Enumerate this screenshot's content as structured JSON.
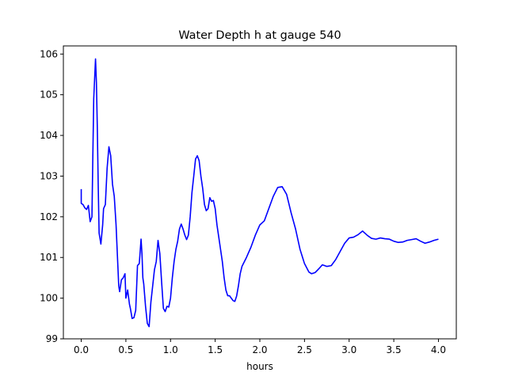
{
  "chart_data": {
    "type": "line",
    "title": "Water Depth h at gauge 540",
    "xlabel": "hours",
    "ylabel": "",
    "xlim": [
      -0.2,
      4.2
    ],
    "ylim": [
      99.0,
      106.2
    ],
    "xticks": [
      0.0,
      0.5,
      1.0,
      1.5,
      2.0,
      2.5,
      3.0,
      3.5,
      4.0
    ],
    "xtick_labels": [
      "0.0",
      "0.5",
      "1.0",
      "1.5",
      "2.0",
      "2.5",
      "3.0",
      "3.5",
      "4.0"
    ],
    "yticks": [
      99,
      100,
      101,
      102,
      103,
      104,
      105,
      106
    ],
    "ytick_labels": [
      "99",
      "100",
      "101",
      "102",
      "103",
      "104",
      "105",
      "106"
    ],
    "grid": false,
    "series": [
      {
        "color": "#0000ff",
        "x": [
          0.0,
          0.0,
          0.02,
          0.04,
          0.06,
          0.08,
          0.1,
          0.12,
          0.13,
          0.14,
          0.15,
          0.16,
          0.17,
          0.18,
          0.19,
          0.2,
          0.22,
          0.24,
          0.25,
          0.27,
          0.29,
          0.31,
          0.33,
          0.35,
          0.37,
          0.39,
          0.41,
          0.42,
          0.43,
          0.45,
          0.47,
          0.49,
          0.5,
          0.52,
          0.54,
          0.55,
          0.57,
          0.59,
          0.61,
          0.63,
          0.65,
          0.67,
          0.68,
          0.69,
          0.7,
          0.72,
          0.74,
          0.76,
          0.78,
          0.8,
          0.82,
          0.84,
          0.86,
          0.88,
          0.9,
          0.92,
          0.94,
          0.96,
          0.98,
          1.0,
          1.02,
          1.04,
          1.06,
          1.08,
          1.1,
          1.12,
          1.14,
          1.16,
          1.18,
          1.2,
          1.22,
          1.24,
          1.26,
          1.28,
          1.3,
          1.32,
          1.34,
          1.36,
          1.38,
          1.4,
          1.42,
          1.44,
          1.46,
          1.48,
          1.5,
          1.52,
          1.54,
          1.56,
          1.58,
          1.6,
          1.62,
          1.64,
          1.66,
          1.68,
          1.7,
          1.72,
          1.74,
          1.76,
          1.78,
          1.8,
          1.85,
          1.9,
          1.95,
          2.0,
          2.05,
          2.1,
          2.15,
          2.2,
          2.25,
          2.3,
          2.35,
          2.4,
          2.45,
          2.5,
          2.55,
          2.58,
          2.62,
          2.66,
          2.7,
          2.75,
          2.8,
          2.85,
          2.9,
          2.95,
          3.0,
          3.05,
          3.1,
          3.15,
          3.2,
          3.25,
          3.3,
          3.35,
          3.4,
          3.45,
          3.5,
          3.55,
          3.6,
          3.65,
          3.7,
          3.75,
          3.8,
          3.85,
          3.9,
          3.95,
          4.0
        ],
        "y": [
          102.68,
          102.33,
          102.3,
          102.22,
          102.18,
          102.28,
          101.88,
          102.0,
          103.5,
          104.9,
          105.4,
          105.88,
          105.3,
          104.2,
          102.8,
          101.6,
          101.33,
          101.8,
          102.2,
          102.3,
          103.2,
          103.72,
          103.5,
          102.8,
          102.5,
          101.8,
          100.8,
          100.3,
          100.16,
          100.45,
          100.5,
          100.6,
          100.0,
          100.2,
          99.85,
          99.75,
          99.5,
          99.52,
          99.7,
          100.8,
          100.85,
          101.45,
          101.1,
          100.5,
          100.35,
          99.8,
          99.38,
          99.3,
          99.9,
          100.3,
          100.7,
          100.9,
          101.42,
          101.1,
          100.4,
          99.75,
          99.67,
          99.8,
          99.78,
          100.0,
          100.5,
          100.9,
          101.2,
          101.4,
          101.7,
          101.82,
          101.7,
          101.55,
          101.44,
          101.55,
          102.0,
          102.6,
          103.0,
          103.42,
          103.5,
          103.38,
          103.0,
          102.7,
          102.3,
          102.15,
          102.2,
          102.47,
          102.38,
          102.4,
          102.2,
          101.8,
          101.5,
          101.2,
          100.9,
          100.5,
          100.2,
          100.06,
          100.06,
          100.0,
          99.94,
          99.92,
          100.05,
          100.3,
          100.6,
          100.78,
          101.0,
          101.25,
          101.55,
          101.8,
          101.9,
          102.2,
          102.5,
          102.72,
          102.74,
          102.55,
          102.1,
          101.7,
          101.2,
          100.85,
          100.64,
          100.6,
          100.63,
          100.72,
          100.82,
          100.78,
          100.8,
          100.95,
          101.15,
          101.35,
          101.48,
          101.5,
          101.56,
          101.65,
          101.55,
          101.47,
          101.45,
          101.48,
          101.46,
          101.45,
          101.4,
          101.37,
          101.38,
          101.42,
          101.44,
          101.46,
          101.4,
          101.35,
          101.38,
          101.42,
          101.45
        ]
      }
    ]
  }
}
